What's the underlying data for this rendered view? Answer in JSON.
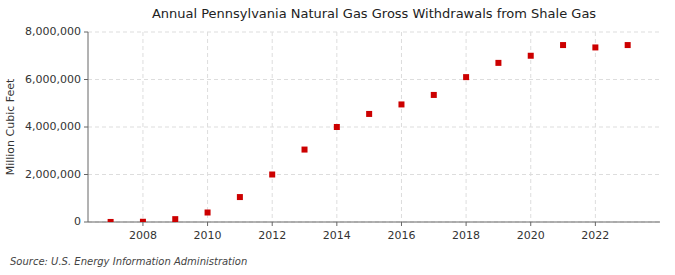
{
  "chart_data": {
    "type": "scatter",
    "title": "Annual Pennsylvania Natural Gas Gross Withdrawals from Shale Gas",
    "ylabel": "Million Cubic Feet",
    "source": "Source: U.S. Energy Information Administration",
    "x": [
      2007,
      2008,
      2009,
      2010,
      2011,
      2012,
      2013,
      2014,
      2015,
      2016,
      2017,
      2018,
      2019,
      2020,
      2021,
      2022,
      2023
    ],
    "values": [
      2000,
      10000,
      120000,
      400000,
      1050000,
      2000000,
      3050000,
      4000000,
      4550000,
      4950000,
      5350000,
      6100000,
      6700000,
      7000000,
      7450000,
      7350000,
      7450000
    ],
    "color": "#cc0000",
    "marker": "square",
    "xlim": [
      2006.3,
      2024.0
    ],
    "xticks": [
      2008,
      2010,
      2012,
      2014,
      2016,
      2018,
      2020,
      2022
    ],
    "ylim": [
      0,
      8000000
    ],
    "yticks": [
      0,
      {
        "value": 2000000,
        "label": "2,000,000"
      },
      {
        "value": 4000000,
        "label": "4,000,000"
      },
      {
        "value": 6000000,
        "label": "6,000,000"
      },
      {
        "value": 8000000,
        "label": "8,000,000"
      }
    ],
    "grid": true
  }
}
